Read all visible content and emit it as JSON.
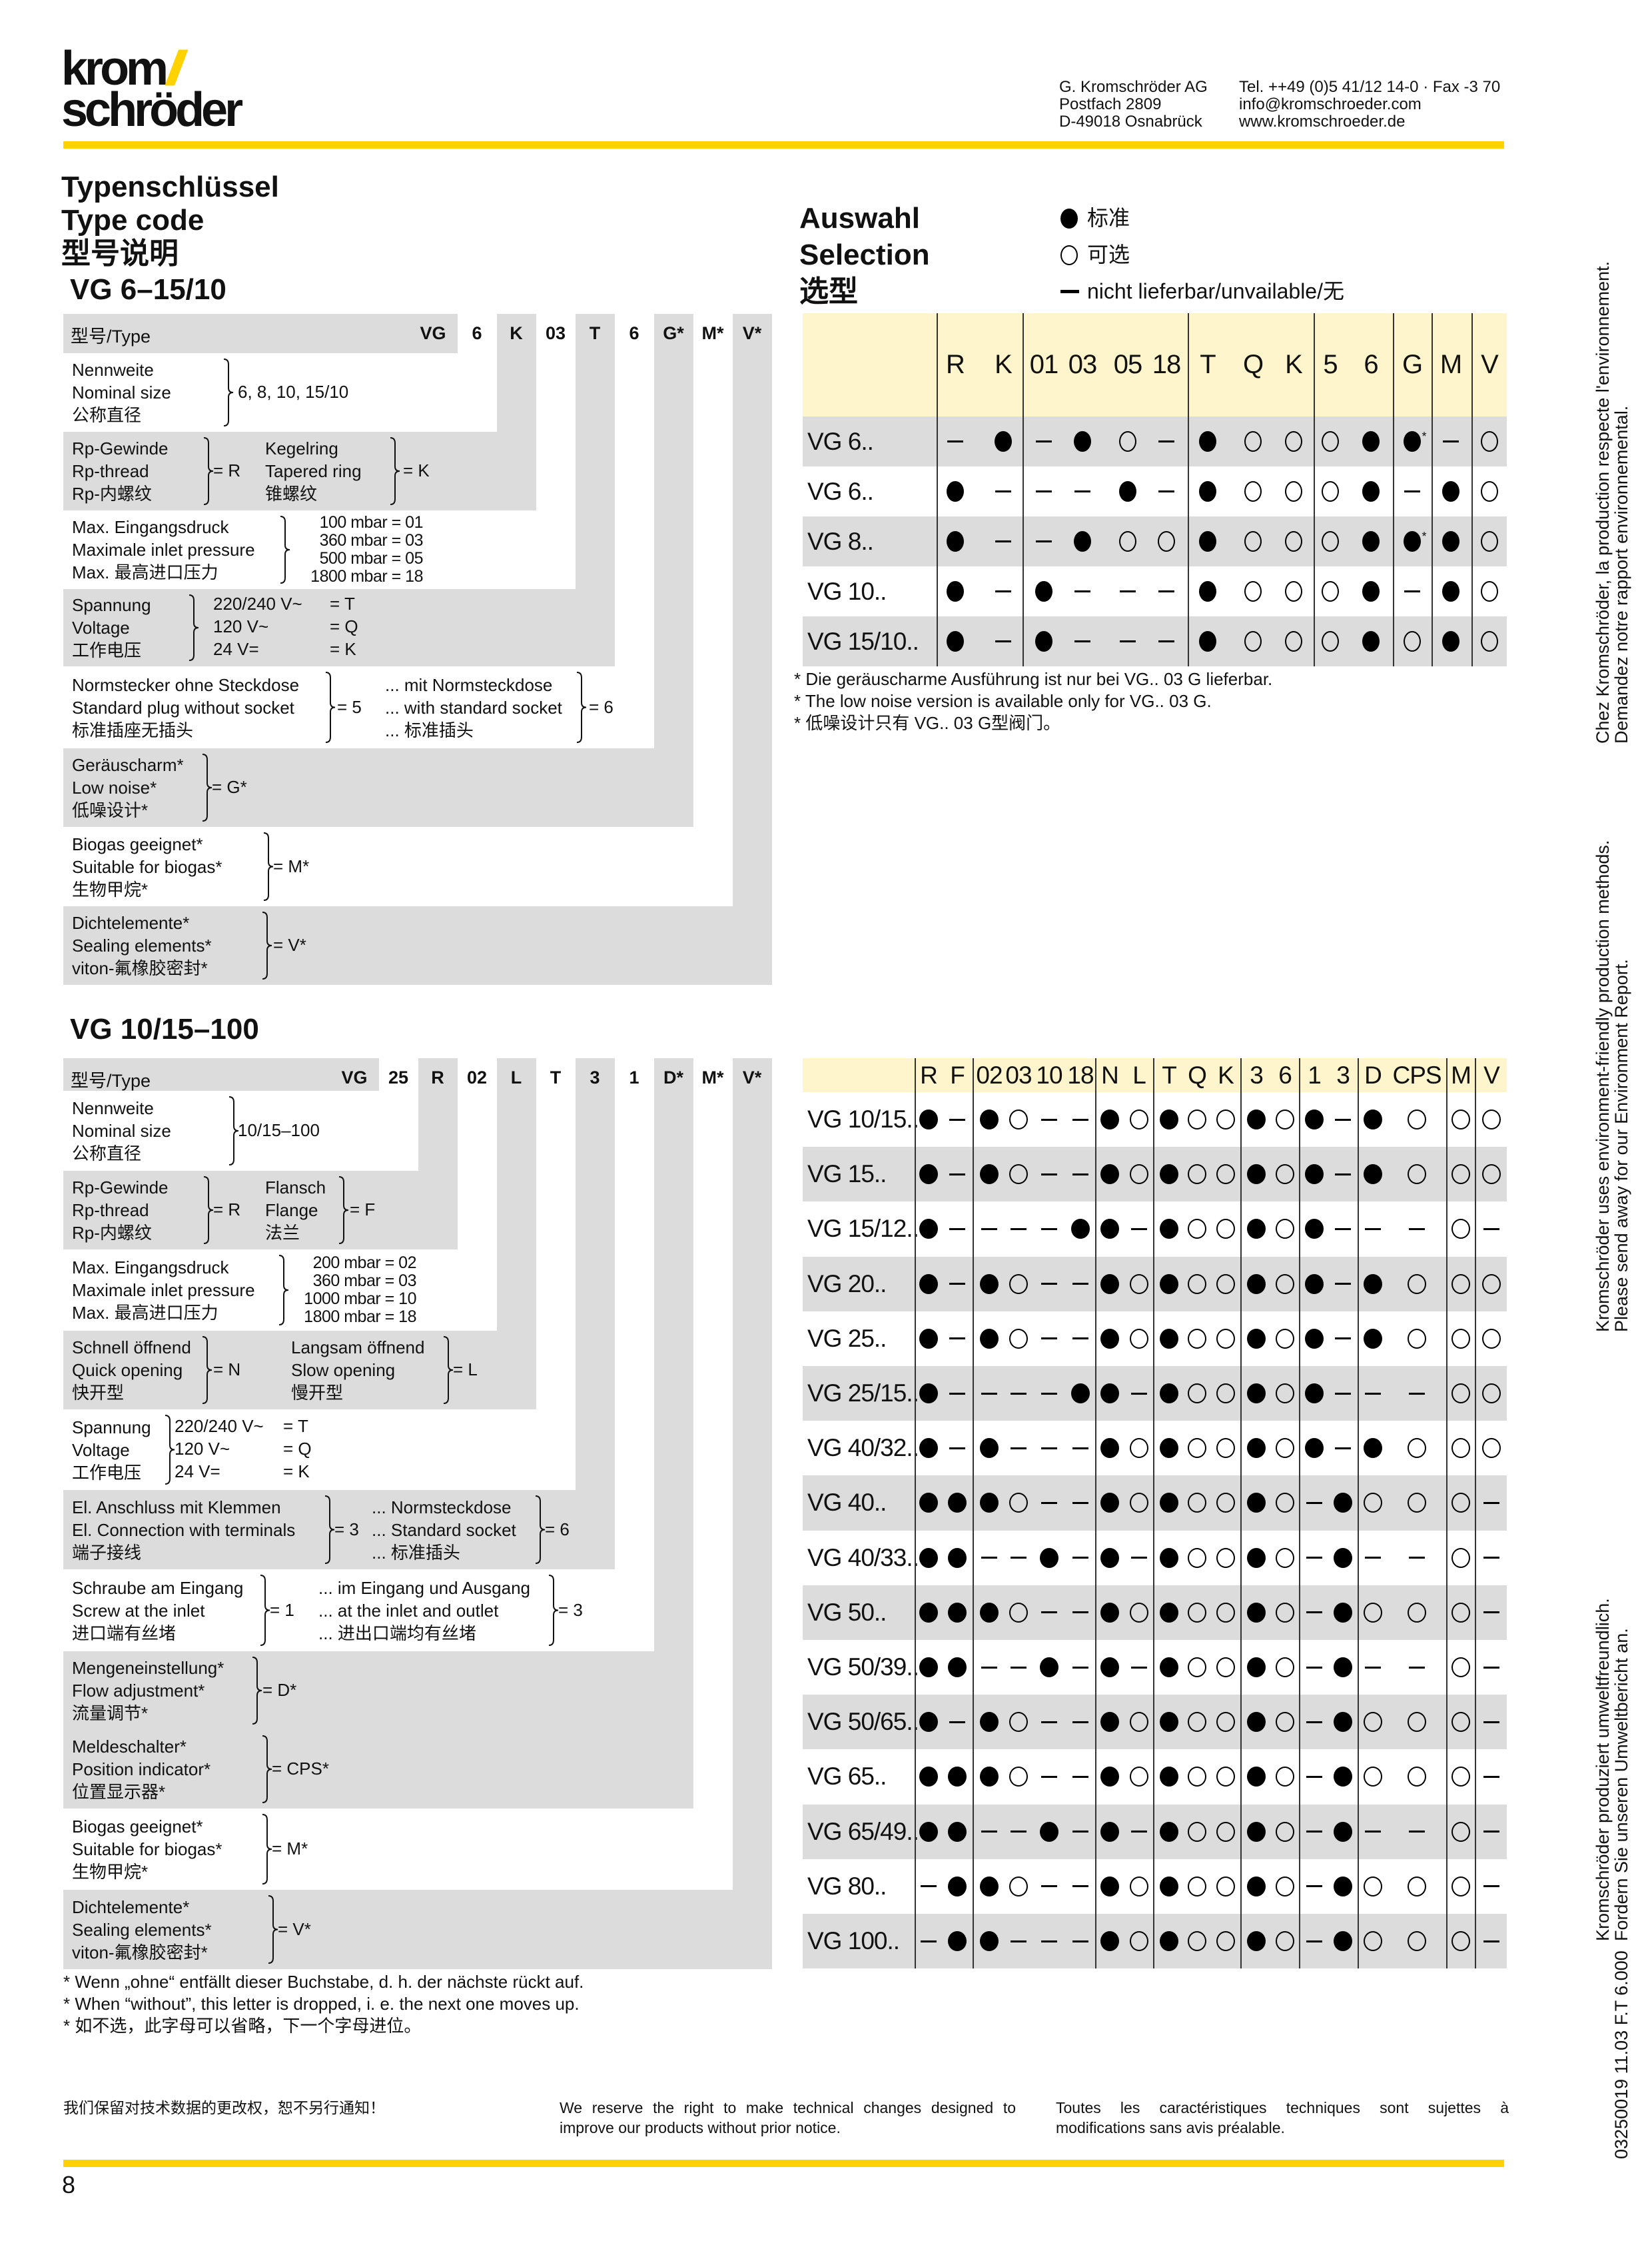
{
  "header": {
    "logo": {
      "line1": "krom",
      "slashes": "//",
      "line2": "schröder"
    },
    "address": [
      "G. Kromschröder AG",
      "Postfach 2809",
      "D-49018 Osnabrück"
    ],
    "contact": [
      "Tel. ++49 (0)5 41/12 14-0 · Fax -3 70",
      "info@kromschroeder.com",
      "www.kromschroeder.de"
    ]
  },
  "colors": {
    "accent": "#FFD200",
    "row_gray": "#DCDCDC",
    "header_yellow": "#FFF5CC"
  },
  "titles": [
    "Typenschlüssel",
    "Type code",
    "型号说明"
  ],
  "selection": {
    "title": [
      "Auswahl",
      "Selection",
      "选型"
    ],
    "legend": [
      {
        "symbol": "filled-circle",
        "text": "标准"
      },
      {
        "symbol": "open-circle",
        "text": "可选"
      },
      {
        "symbol": "dash",
        "text": "nicht lieferbar/unvailable/无"
      }
    ]
  },
  "type_code_1": {
    "title": "VG 6–15/10",
    "header_label": "型号/Type",
    "codes": [
      "VG",
      "6",
      "K",
      "03",
      "T",
      "6",
      "G*",
      "M*",
      "V*"
    ],
    "rows": [
      {
        "groups": [
          {
            "lines": [
              "Nennweite",
              "Nominal size",
              "公称直径"
            ],
            "value": "6, 8, 10, 15/10"
          }
        ]
      },
      {
        "groups": [
          {
            "lines": [
              "Rp-Gewinde",
              "Rp-thread",
              "Rp-内螺纹"
            ],
            "value": "= R"
          },
          {
            "lines": [
              "Kegelring",
              "Tapered ring",
              "锥螺纹"
            ],
            "value": "= K"
          }
        ]
      },
      {
        "groups": [
          {
            "lines": [
              "Max. Eingangsdruck",
              "Maximale inlet pressure",
              "Max. 最高进口压力"
            ],
            "options": [
              "100 mbar = 01",
              "360 mbar = 03",
              "500 mbar = 05",
              "1800 mbar = 18"
            ]
          }
        ]
      },
      {
        "groups": [
          {
            "lines": [
              "Spannung",
              "Voltage",
              "工作电压"
            ],
            "pairs": [
              [
                "220/240 V~",
                "= T"
              ],
              [
                "120 V~",
                "= Q"
              ],
              [
                "24 V=",
                "= K"
              ]
            ]
          }
        ]
      },
      {
        "groups": [
          {
            "lines": [
              "Normstecker ohne Steckdose",
              "Standard plug without socket",
              "标准插座无插头"
            ],
            "value": "= 5"
          },
          {
            "lines": [
              "... mit Normsteckdose",
              "... with standard socket",
              "... 标准插头"
            ],
            "value": "= 6"
          }
        ]
      },
      {
        "groups": [
          {
            "lines": [
              "Geräuscharm*",
              "Low noise*",
              "低噪设计*"
            ],
            "value": "= G*"
          }
        ]
      },
      {
        "groups": [
          {
            "lines": [
              "Biogas geeignet*",
              "Suitable for biogas*",
              "生物甲烷*"
            ],
            "value": "= M*"
          }
        ]
      },
      {
        "groups": [
          {
            "lines": [
              "Dichtelemente*",
              "Sealing elements*",
              "viton-氟橡胶密封*"
            ],
            "value": "= V*"
          }
        ]
      }
    ]
  },
  "selection_1": {
    "columns": [
      "R",
      "K",
      "01",
      "03",
      "05",
      "18",
      "T",
      "Q",
      "K",
      "5",
      "6",
      "G",
      "M",
      "V"
    ],
    "rows": [
      {
        "label": "VG 6..",
        "values": [
          "–",
          "●",
          "–",
          "●",
          "○",
          "–",
          "●",
          "○",
          "○",
          "○",
          "●",
          "●*",
          "–",
          "○"
        ]
      },
      {
        "label": "VG 6..",
        "values": [
          "●",
          "–",
          "–",
          "–",
          "●",
          "–",
          "●",
          "○",
          "○",
          "○",
          "●",
          "–",
          "●",
          "○"
        ]
      },
      {
        "label": "VG 8..",
        "values": [
          "●",
          "–",
          "–",
          "●",
          "○",
          "○",
          "●",
          "○",
          "○",
          "○",
          "●",
          "●*",
          "●",
          "○"
        ]
      },
      {
        "label": "VG 10..",
        "values": [
          "●",
          "–",
          "●",
          "–",
          "–",
          "–",
          "●",
          "○",
          "○",
          "○",
          "●",
          "–",
          "●",
          "○"
        ]
      },
      {
        "label": "VG 15/10..",
        "values": [
          "●",
          "–",
          "●",
          "–",
          "–",
          "–",
          "●",
          "○",
          "○",
          "○",
          "●",
          "○",
          "●",
          "○"
        ]
      }
    ],
    "notes": [
      "* Die geräuscharme Ausführung ist nur bei VG.. 03 G lieferbar.",
      "* The low noise version is available only for VG.. 03 G.",
      "* 低噪设计只有 VG.. 03 G型阀门。"
    ]
  },
  "type_code_2": {
    "title": "VG 10/15–100",
    "header_label": "型号/Type",
    "codes": [
      "VG",
      "25",
      "R",
      "02",
      "L",
      "T",
      "3",
      "1",
      "D*",
      "M*",
      "V*"
    ],
    "rows": [
      {
        "groups": [
          {
            "lines": [
              "Nennweite",
              "Nominal size",
              "公称直径"
            ],
            "value": "10/15–100"
          }
        ]
      },
      {
        "groups": [
          {
            "lines": [
              "Rp-Gewinde",
              "Rp-thread",
              "Rp-内螺纹"
            ],
            "value": "= R"
          },
          {
            "lines": [
              "Flansch",
              "Flange",
              "法兰"
            ],
            "value": "= F"
          }
        ]
      },
      {
        "groups": [
          {
            "lines": [
              "Max. Eingangsdruck",
              "Maximale inlet pressure",
              "Max. 最高进口压力"
            ],
            "options": [
              "200 mbar = 02",
              "360 mbar = 03",
              "1000 mbar = 10",
              "1800 mbar = 18"
            ]
          }
        ]
      },
      {
        "groups": [
          {
            "lines": [
              "Schnell öffnend",
              "Quick opening",
              "快开型"
            ],
            "value": "= N"
          },
          {
            "lines": [
              "Langsam öffnend",
              "Slow opening",
              "慢开型"
            ],
            "value": "= L"
          }
        ]
      },
      {
        "groups": [
          {
            "lines": [
              "Spannung",
              "Voltage",
              "工作电压"
            ],
            "pairs": [
              [
                "220/240 V~",
                "= T"
              ],
              [
                "120 V~",
                "= Q"
              ],
              [
                "24 V=",
                "= K"
              ]
            ]
          }
        ]
      },
      {
        "groups": [
          {
            "lines": [
              "El. Anschluss mit Klemmen",
              "El. Connection with terminals",
              "端子接线"
            ],
            "value": "= 3"
          },
          {
            "lines": [
              "... Normsteckdose",
              "... Standard socket",
              "... 标准插头"
            ],
            "value": "= 6"
          }
        ]
      },
      {
        "groups": [
          {
            "lines": [
              "Schraube am Eingang",
              "Screw at the inlet",
              "进口端有丝堵"
            ],
            "value": "= 1"
          },
          {
            "lines": [
              "... im Eingang und Ausgang",
              "... at the inlet and outlet",
              "... 进出口端均有丝堵"
            ],
            "value": "= 3"
          }
        ]
      },
      {
        "groups": [
          {
            "lines": [
              "Mengeneinstellung*",
              "Flow adjustment*",
              "流量调节*"
            ],
            "value": "= D*"
          }
        ]
      },
      {
        "groups": [
          {
            "lines": [
              "Meldeschalter*",
              "Position indicator*",
              "位置显示器*"
            ],
            "value": "= CPS*"
          }
        ]
      },
      {
        "groups": [
          {
            "lines": [
              "Biogas geeignet*",
              "Suitable for biogas*",
              "生物甲烷*"
            ],
            "value": "= M*"
          }
        ]
      },
      {
        "groups": [
          {
            "lines": [
              "Dichtelemente*",
              "Sealing elements*",
              "viton-氟橡胶密封*"
            ],
            "value": "= V*"
          }
        ]
      }
    ],
    "notes": [
      "* Wenn „ohne“ entfällt dieser Buchstabe, d. h. der nächste rückt auf.",
      "* When “without”, this letter is dropped, i. e. the next one moves up.",
      "* 如不选，此字母可以省略，下一个字母进位。"
    ]
  },
  "selection_2": {
    "columns": [
      "R",
      "F",
      "02",
      "03",
      "10",
      "18",
      "N",
      "L",
      "T",
      "Q",
      "K",
      "3",
      "6",
      "1",
      "3",
      "D",
      "CPS",
      "M",
      "V"
    ],
    "rows": [
      {
        "label": "VG 10/15..",
        "values": [
          "●",
          "–",
          "●",
          "○",
          "–",
          "–",
          "●",
          "○",
          "●",
          "○",
          "○",
          "●",
          "○",
          "●",
          "–",
          "●",
          "○",
          "○",
          "○"
        ]
      },
      {
        "label": "VG 15..",
        "values": [
          "●",
          "–",
          "●",
          "○",
          "–",
          "–",
          "●",
          "○",
          "●",
          "○",
          "○",
          "●",
          "○",
          "●",
          "–",
          "●",
          "○",
          "○",
          "○"
        ]
      },
      {
        "label": "VG 15/12..",
        "values": [
          "●",
          "–",
          "–",
          "–",
          "–",
          "●",
          "●",
          "–",
          "●",
          "○",
          "○",
          "●",
          "○",
          "●",
          "–",
          "–",
          "–",
          "○",
          "–"
        ]
      },
      {
        "label": "VG 20..",
        "values": [
          "●",
          "–",
          "●",
          "○",
          "–",
          "–",
          "●",
          "○",
          "●",
          "○",
          "○",
          "●",
          "○",
          "●",
          "–",
          "●",
          "○",
          "○",
          "○"
        ]
      },
      {
        "label": "VG 25..",
        "values": [
          "●",
          "–",
          "●",
          "○",
          "–",
          "–",
          "●",
          "○",
          "●",
          "○",
          "○",
          "●",
          "○",
          "●",
          "–",
          "●",
          "○",
          "○",
          "○"
        ]
      },
      {
        "label": "VG 25/15..",
        "values": [
          "●",
          "–",
          "–",
          "–",
          "–",
          "●",
          "●",
          "–",
          "●",
          "○",
          "○",
          "●",
          "○",
          "●",
          "–",
          "–",
          "–",
          "○",
          "○"
        ]
      },
      {
        "label": "VG 40/32..",
        "values": [
          "●",
          "–",
          "●",
          "–",
          "–",
          "–",
          "●",
          "○",
          "●",
          "○",
          "○",
          "●",
          "○",
          "●",
          "–",
          "●",
          "○",
          "○",
          "○"
        ]
      },
      {
        "label": "VG 40..",
        "values": [
          "●",
          "●",
          "●",
          "○",
          "–",
          "–",
          "●",
          "○",
          "●",
          "○",
          "○",
          "●",
          "○",
          "–",
          "●",
          "○",
          "○",
          "○",
          "–"
        ]
      },
      {
        "label": "VG 40/33..",
        "values": [
          "●",
          "●",
          "–",
          "–",
          "●",
          "–",
          "●",
          "–",
          "●",
          "○",
          "○",
          "●",
          "○",
          "–",
          "●",
          "–",
          "–",
          "○",
          "–"
        ]
      },
      {
        "label": "VG 50..",
        "values": [
          "●",
          "●",
          "●",
          "○",
          "–",
          "–",
          "●",
          "○",
          "●",
          "○",
          "○",
          "●",
          "○",
          "–",
          "●",
          "○",
          "○",
          "○",
          "–"
        ]
      },
      {
        "label": "VG 50/39..",
        "values": [
          "●",
          "●",
          "–",
          "–",
          "●",
          "–",
          "●",
          "–",
          "●",
          "○",
          "○",
          "●",
          "○",
          "–",
          "●",
          "–",
          "–",
          "○",
          "–"
        ]
      },
      {
        "label": "VG 50/65..",
        "values": [
          "●",
          "–",
          "●",
          "○",
          "–",
          "–",
          "●",
          "○",
          "●",
          "○",
          "○",
          "●",
          "○",
          "–",
          "●",
          "○",
          "○",
          "○",
          "–"
        ]
      },
      {
        "label": "VG 65..",
        "values": [
          "●",
          "●",
          "●",
          "○",
          "–",
          "–",
          "●",
          "○",
          "●",
          "○",
          "○",
          "●",
          "○",
          "–",
          "●",
          "○",
          "○",
          "○",
          "–"
        ]
      },
      {
        "label": "VG 65/49..",
        "values": [
          "●",
          "●",
          "–",
          "–",
          "●",
          "–",
          "●",
          "–",
          "●",
          "○",
          "○",
          "●",
          "○",
          "–",
          "●",
          "–",
          "–",
          "○",
          "–"
        ]
      },
      {
        "label": "VG 80..",
        "values": [
          "–",
          "●",
          "●",
          "○",
          "–",
          "–",
          "●",
          "○",
          "●",
          "○",
          "○",
          "●",
          "○",
          "–",
          "●",
          "○",
          "○",
          "○",
          "–"
        ]
      },
      {
        "label": "VG 100..",
        "values": [
          "–",
          "●",
          "●",
          "–",
          "–",
          "–",
          "●",
          "○",
          "●",
          "○",
          "○",
          "●",
          "○",
          "–",
          "●",
          "○",
          "○",
          "○",
          "–"
        ]
      }
    ]
  },
  "footer": {
    "zh": "我们保留对技术数据的更改权，恕不另行通知！",
    "en": "We reserve the right to make technical changes designed to improve our products without prior notice.",
    "fr": "Toutes les caractéristiques techniques sont sujettes à modifications sans avis préalable.",
    "page_number": "8"
  },
  "side": {
    "fr": [
      "Chez Kromschröder, la production respecte l'environnement.",
      "Demandez notre rapport environnemental."
    ],
    "en": [
      "Kromschröder uses environment-friendly production methods.",
      "Please send away for our Environment Report."
    ],
    "de": [
      "Kromschröder produziert umweltfreundlich.",
      "Fordern Sie unseren Umweltbericht an."
    ],
    "doc_code": "03250019  11.03  F.T 6.000"
  }
}
